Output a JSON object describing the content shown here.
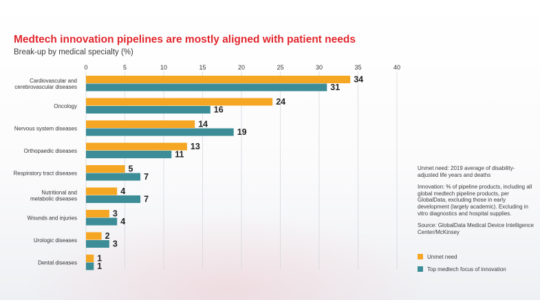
{
  "title": "Medtech innovation pipelines are mostly aligned with patient needs",
  "subtitle": "Break-up by medical specialty (%)",
  "notes": {
    "unmet": "Unmet need: 2019 average of disability-adjusted life years and deaths",
    "innovation": "Innovation: % of pipeline products, including all global medtech pipeline products, per GlobalData, excluding those in early development (largely academic). Excluding in vitro diagnostics and hospital supplies.",
    "source": "Source: GlobalData Medical Device Intelligence Center/McKinsey"
  },
  "colors": {
    "unmet": "#f5a623",
    "focus": "#3c8d97",
    "title": "#e1262d"
  },
  "legend": [
    {
      "label": "Unmet need",
      "color": "#f5a623"
    },
    {
      "label": "Top medtech focus of innovation",
      "color": "#3c8d97"
    }
  ],
  "chart_data": {
    "type": "bar",
    "orientation": "horizontal",
    "title": "Medtech innovation pipelines are mostly aligned with patient needs",
    "subtitle": "Break-up by medical specialty (%)",
    "categories": [
      [
        "Cardiovascular and",
        "cerebrovascular diseases"
      ],
      [
        "Oncology"
      ],
      [
        "Nervous system diseases"
      ],
      [
        "Orthopaedic diseases"
      ],
      [
        "Respiratory tract diseases"
      ],
      [
        "Nutritional and",
        "metabolic diseases"
      ],
      [
        "Wounds and injuries"
      ],
      [
        "Urologic diseases"
      ],
      [
        "Dental diseases"
      ]
    ],
    "series": [
      {
        "name": "Unmet need",
        "values": [
          34,
          24,
          14,
          13,
          5,
          4,
          3,
          2,
          1
        ]
      },
      {
        "name": "Top medtech focus of innovation",
        "values": [
          31,
          16,
          19,
          11,
          7,
          7,
          4,
          3,
          1
        ]
      }
    ],
    "xlim": [
      0,
      40
    ],
    "xticks": [
      0,
      5,
      10,
      15,
      20,
      25,
      30,
      35,
      40
    ],
    "grid": true,
    "legend_position": "bottom-right"
  }
}
